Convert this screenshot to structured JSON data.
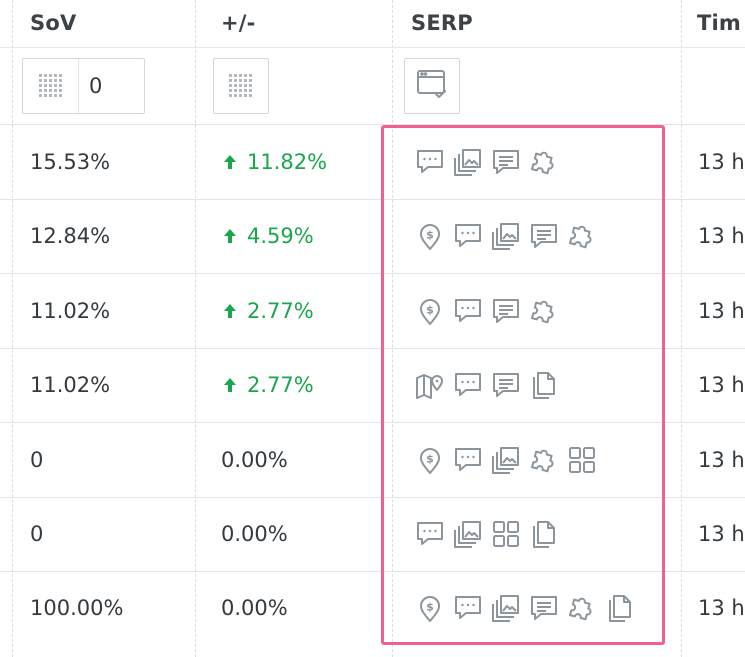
{
  "columns": {
    "sov": "SoV",
    "change": "+/-",
    "serp": "SERP",
    "time": "Tim"
  },
  "filters": {
    "sov_value": "0"
  },
  "colors": {
    "positive": "#1aa64a",
    "icon": "#8c949c",
    "highlight": "#f1618f"
  },
  "rows": [
    {
      "sov": "15.53%",
      "change": "11.82%",
      "trend": "up",
      "serp": [
        "chat-icon",
        "image-pack-icon",
        "message-icon",
        "puzzle-icon"
      ],
      "time": "13 h"
    },
    {
      "sov": "12.84%",
      "change": "4.59%",
      "trend": "up",
      "serp": [
        "location-dollar-icon",
        "chat-icon",
        "image-pack-icon",
        "message-icon",
        "puzzle-icon"
      ],
      "time": "13 h"
    },
    {
      "sov": "11.02%",
      "change": "2.77%",
      "trend": "up",
      "serp": [
        "location-dollar-icon",
        "chat-icon",
        "message-icon",
        "puzzle-icon"
      ],
      "time": "13 h"
    },
    {
      "sov": "11.02%",
      "change": "2.77%",
      "trend": "up",
      "serp": [
        "map-pin-icon",
        "chat-icon",
        "message-icon",
        "document-icon"
      ],
      "time": "13 h"
    },
    {
      "sov": "0",
      "change": "0.00%",
      "trend": "none",
      "serp": [
        "location-dollar-icon",
        "chat-icon",
        "image-pack-icon",
        "puzzle-icon",
        "grid-icon"
      ],
      "time": "13 h"
    },
    {
      "sov": "0",
      "change": "0.00%",
      "trend": "none",
      "serp": [
        "chat-icon",
        "image-pack-icon",
        "grid-icon",
        "document-icon"
      ],
      "time": "13 h"
    },
    {
      "sov": "100.00%",
      "change": "0.00%",
      "trend": "none",
      "serp": [
        "location-dollar-icon",
        "chat-icon",
        "image-pack-icon",
        "message-icon",
        "puzzle-icon",
        "document-icon"
      ],
      "time": "13 h"
    }
  ]
}
